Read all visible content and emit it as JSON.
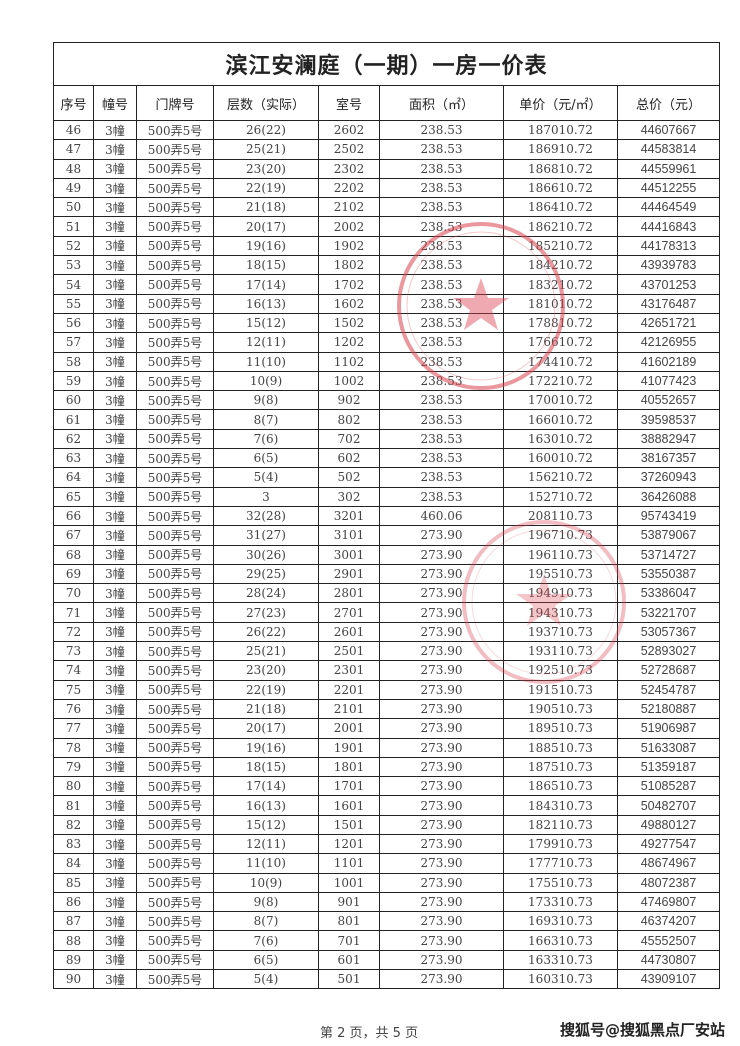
{
  "document": {
    "title": "滨江安澜庭（一期）一房一价表",
    "columns": [
      "序号",
      "幢号",
      "门牌号",
      "层数（实际）",
      "室号",
      "面积（㎡）",
      "单价（元/㎡）",
      "总价（元）"
    ],
    "rows": [
      [
        "46",
        "3幢",
        "500弄5号",
        "26(22)",
        "2602",
        "238.53",
        "187010.72",
        "44607667"
      ],
      [
        "47",
        "3幢",
        "500弄5号",
        "25(21)",
        "2502",
        "238.53",
        "186910.72",
        "44583814"
      ],
      [
        "48",
        "3幢",
        "500弄5号",
        "23(20)",
        "2302",
        "238.53",
        "186810.72",
        "44559961"
      ],
      [
        "49",
        "3幢",
        "500弄5号",
        "22(19)",
        "2202",
        "238.53",
        "186610.72",
        "44512255"
      ],
      [
        "50",
        "3幢",
        "500弄5号",
        "21(18)",
        "2102",
        "238.53",
        "186410.72",
        "44464549"
      ],
      [
        "51",
        "3幢",
        "500弄5号",
        "20(17)",
        "2002",
        "238.53",
        "186210.72",
        "44416843"
      ],
      [
        "52",
        "3幢",
        "500弄5号",
        "19(16)",
        "1902",
        "238.53",
        "185210.72",
        "44178313"
      ],
      [
        "53",
        "3幢",
        "500弄5号",
        "18(15)",
        "1802",
        "238.53",
        "184210.72",
        "43939783"
      ],
      [
        "54",
        "3幢",
        "500弄5号",
        "17(14)",
        "1702",
        "238.53",
        "183210.72",
        "43701253"
      ],
      [
        "55",
        "3幢",
        "500弄5号",
        "16(13)",
        "1602",
        "238.53",
        "181010.72",
        "43176487"
      ],
      [
        "56",
        "3幢",
        "500弄5号",
        "15(12)",
        "1502",
        "238.53",
        "178810.72",
        "42651721"
      ],
      [
        "57",
        "3幢",
        "500弄5号",
        "12(11)",
        "1202",
        "238.53",
        "176610.72",
        "42126955"
      ],
      [
        "58",
        "3幢",
        "500弄5号",
        "11(10)",
        "1102",
        "238.53",
        "174410.72",
        "41602189"
      ],
      [
        "59",
        "3幢",
        "500弄5号",
        "10(9)",
        "1002",
        "238.53",
        "172210.72",
        "41077423"
      ],
      [
        "60",
        "3幢",
        "500弄5号",
        "9(8)",
        "902",
        "238.53",
        "170010.72",
        "40552657"
      ],
      [
        "61",
        "3幢",
        "500弄5号",
        "8(7)",
        "802",
        "238.53",
        "166010.72",
        "39598537"
      ],
      [
        "62",
        "3幢",
        "500弄5号",
        "7(6)",
        "702",
        "238.53",
        "163010.72",
        "38882947"
      ],
      [
        "63",
        "3幢",
        "500弄5号",
        "6(5)",
        "602",
        "238.53",
        "160010.72",
        "38167357"
      ],
      [
        "64",
        "3幢",
        "500弄5号",
        "5(4)",
        "502",
        "238.53",
        "156210.72",
        "37260943"
      ],
      [
        "65",
        "3幢",
        "500弄5号",
        "3",
        "302",
        "238.53",
        "152710.72",
        "36426088"
      ],
      [
        "66",
        "3幢",
        "500弄5号",
        "32(28)",
        "3201",
        "460.06",
        "208110.73",
        "95743419"
      ],
      [
        "67",
        "3幢",
        "500弄5号",
        "31(27)",
        "3101",
        "273.90",
        "196710.73",
        "53879067"
      ],
      [
        "68",
        "3幢",
        "500弄5号",
        "30(26)",
        "3001",
        "273.90",
        "196110.73",
        "53714727"
      ],
      [
        "69",
        "3幢",
        "500弄5号",
        "29(25)",
        "2901",
        "273.90",
        "195510.73",
        "53550387"
      ],
      [
        "70",
        "3幢",
        "500弄5号",
        "28(24)",
        "2801",
        "273.90",
        "194910.73",
        "53386047"
      ],
      [
        "71",
        "3幢",
        "500弄5号",
        "27(23)",
        "2701",
        "273.90",
        "194310.73",
        "53221707"
      ],
      [
        "72",
        "3幢",
        "500弄5号",
        "26(22)",
        "2601",
        "273.90",
        "193710.73",
        "53057367"
      ],
      [
        "73",
        "3幢",
        "500弄5号",
        "25(21)",
        "2501",
        "273.90",
        "193110.73",
        "52893027"
      ],
      [
        "74",
        "3幢",
        "500弄5号",
        "23(20)",
        "2301",
        "273.90",
        "192510.73",
        "52728687"
      ],
      [
        "75",
        "3幢",
        "500弄5号",
        "22(19)",
        "2201",
        "273.90",
        "191510.73",
        "52454787"
      ],
      [
        "76",
        "3幢",
        "500弄5号",
        "21(18)",
        "2101",
        "273.90",
        "190510.73",
        "52180887"
      ],
      [
        "77",
        "3幢",
        "500弄5号",
        "20(17)",
        "2001",
        "273.90",
        "189510.73",
        "51906987"
      ],
      [
        "78",
        "3幢",
        "500弄5号",
        "19(16)",
        "1901",
        "273.90",
        "188510.73",
        "51633087"
      ],
      [
        "79",
        "3幢",
        "500弄5号",
        "18(15)",
        "1801",
        "273.90",
        "187510.73",
        "51359187"
      ],
      [
        "80",
        "3幢",
        "500弄5号",
        "17(14)",
        "1701",
        "273.90",
        "186510.73",
        "51085287"
      ],
      [
        "81",
        "3幢",
        "500弄5号",
        "16(13)",
        "1601",
        "273.90",
        "184310.73",
        "50482707"
      ],
      [
        "82",
        "3幢",
        "500弄5号",
        "15(12)",
        "1501",
        "273.90",
        "182110.73",
        "49880127"
      ],
      [
        "83",
        "3幢",
        "500弄5号",
        "12(11)",
        "1201",
        "273.90",
        "179910.73",
        "49277547"
      ],
      [
        "84",
        "3幢",
        "500弄5号",
        "11(10)",
        "1101",
        "273.90",
        "177710.73",
        "48674967"
      ],
      [
        "85",
        "3幢",
        "500弄5号",
        "10(9)",
        "1001",
        "273.90",
        "175510.73",
        "48072387"
      ],
      [
        "86",
        "3幢",
        "500弄5号",
        "9(8)",
        "901",
        "273.90",
        "173310.73",
        "47469807"
      ],
      [
        "87",
        "3幢",
        "500弄5号",
        "8(7)",
        "801",
        "273.90",
        "169310.73",
        "46374207"
      ],
      [
        "88",
        "3幢",
        "500弄5号",
        "7(6)",
        "701",
        "273.90",
        "166310.73",
        "45552507"
      ],
      [
        "89",
        "3幢",
        "500弄5号",
        "6(5)",
        "601",
        "273.90",
        "163310.73",
        "44730807"
      ],
      [
        "90",
        "3幢",
        "500弄5号",
        "5(4)",
        "501",
        "273.90",
        "160310.73",
        "43909107"
      ]
    ],
    "footer": "第 2 页，共 5 页",
    "watermark": "搜狐号@搜狐黑点厂安站",
    "stamp_color": "#d9434f"
  }
}
